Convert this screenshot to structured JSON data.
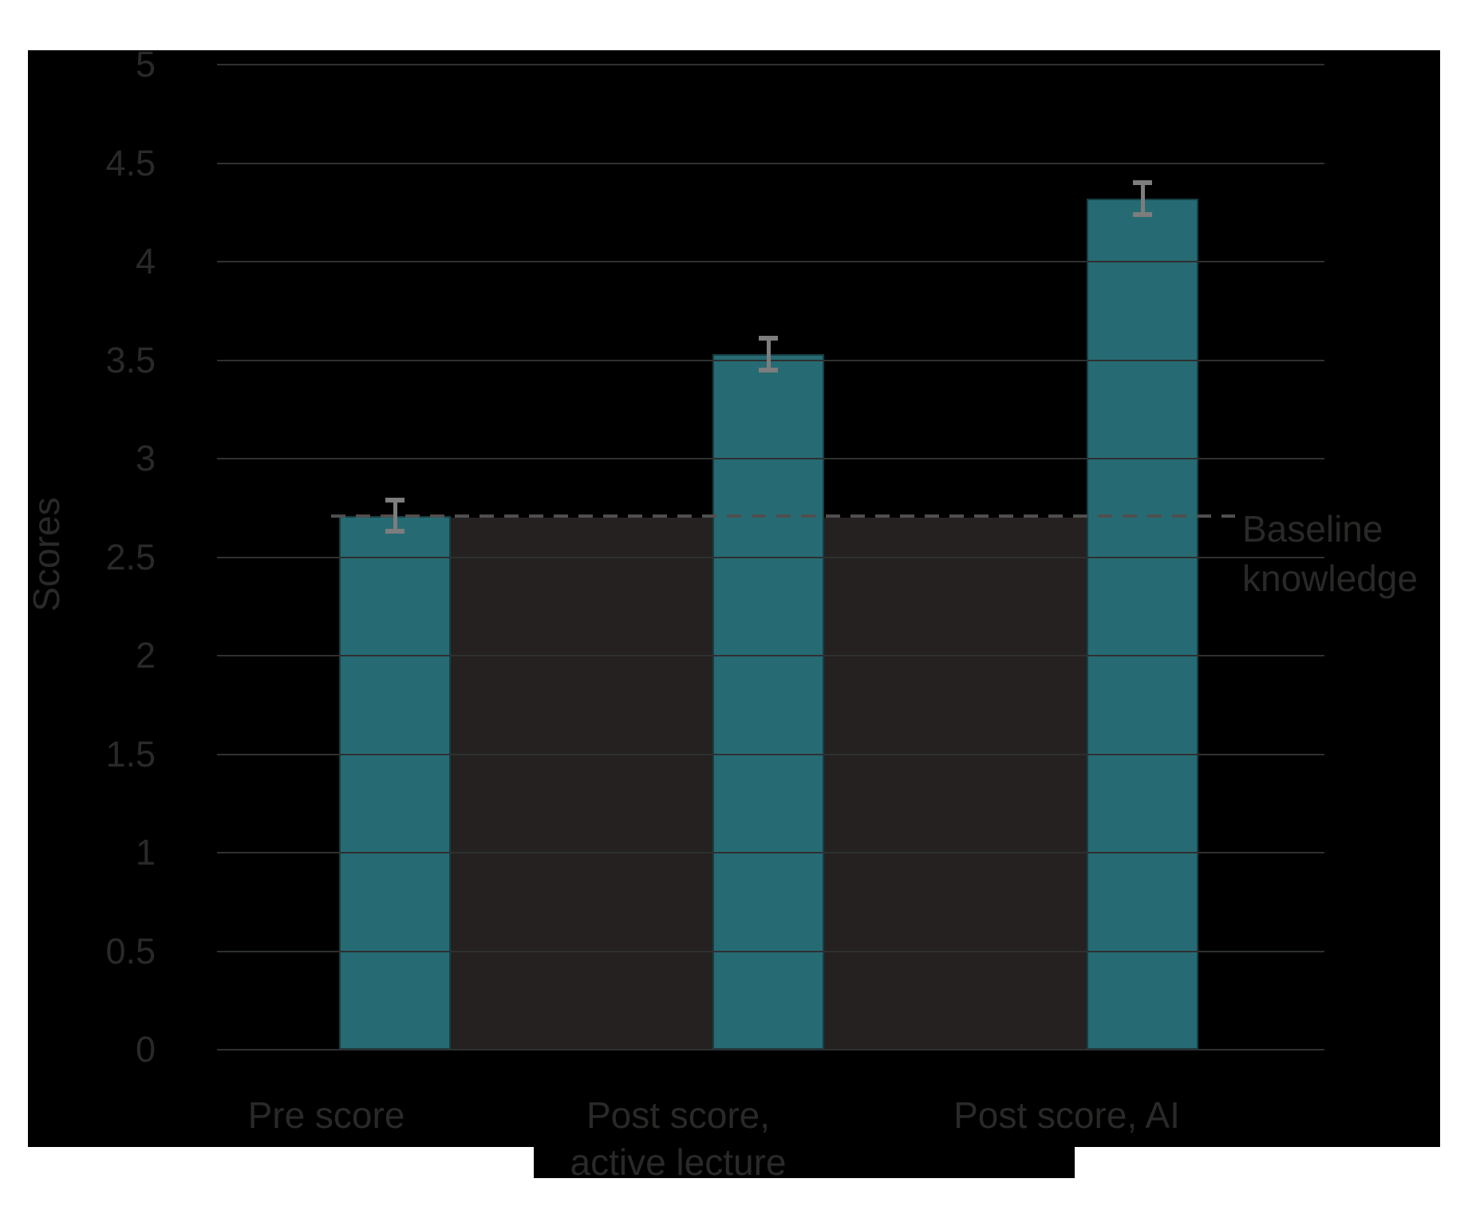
{
  "page": {
    "background": "#ffffff"
  },
  "chart_data": {
    "type": "bar",
    "title": "",
    "xlabel": "",
    "ylabel": "Scores",
    "ylim": [
      0,
      5
    ],
    "ytick_step": 0.5,
    "yticks": [
      "0",
      "0.5",
      "1",
      "1.5",
      "2",
      "2.5",
      "3",
      "3.5",
      "4",
      "4.5",
      "5"
    ],
    "categories": [
      "Pre score",
      "Post score,\nactive lecture",
      "Post score, AI"
    ],
    "values": [
      2.71,
      3.53,
      4.32
    ],
    "errors": [
      0.08,
      0.08,
      0.08
    ],
    "baseline": {
      "value": 2.71,
      "label": "Baseline\nknowledge"
    },
    "grid": true,
    "legend_position": "none",
    "colors": {
      "bar": "#266b73",
      "shade": "#242120",
      "background": "#000000",
      "grid": "#2e3031",
      "dashed_line": "#4f4f4f",
      "error_bar": "#7d7d7d",
      "text": "#2a2928"
    }
  }
}
